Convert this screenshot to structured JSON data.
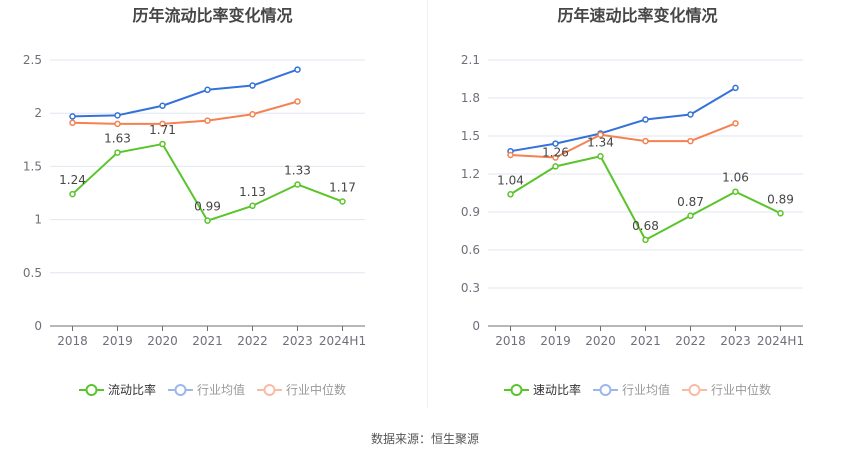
{
  "source_text": "数据来源：恒生聚源",
  "chart_data": [
    {
      "type": "line",
      "title": "历年流动比率变化情况",
      "categories": [
        "2018",
        "2019",
        "2020",
        "2021",
        "2022",
        "2023",
        "2024H1"
      ],
      "yticks": [
        "0",
        "0.5",
        "1",
        "1.5",
        "2",
        "2.5"
      ],
      "ylim": [
        0,
        2.5
      ],
      "grid": true,
      "legend_position": "bottom",
      "series": [
        {
          "name": "流动比率",
          "color": "#5ac42b",
          "values": [
            1.24,
            1.63,
            1.71,
            0.99,
            1.13,
            1.33,
            1.17
          ],
          "labels": [
            "1.24",
            "1.63",
            "1.71",
            "0.99",
            "1.13",
            "1.33",
            "1.17"
          ],
          "show_labels": true
        },
        {
          "name": "行业均值",
          "color": "#3472d9",
          "legend_color": "#9bb7ec",
          "values": [
            1.97,
            1.98,
            2.07,
            2.22,
            2.26,
            2.41,
            null
          ]
        },
        {
          "name": "行业中位数",
          "color": "#f58152",
          "legend_color": "#f9bba3",
          "values": [
            1.91,
            1.9,
            1.9,
            1.93,
            1.99,
            2.11,
            null
          ]
        }
      ]
    },
    {
      "type": "line",
      "title": "历年速动比率变化情况",
      "categories": [
        "2018",
        "2019",
        "2020",
        "2021",
        "2022",
        "2023",
        "2024H1"
      ],
      "yticks": [
        "0",
        "0.3",
        "0.6",
        "0.9",
        "1.2",
        "1.5",
        "1.8",
        "2.1"
      ],
      "ylim": [
        0,
        2.1
      ],
      "grid": true,
      "legend_position": "bottom",
      "series": [
        {
          "name": "速动比率",
          "color": "#5ac42b",
          "values": [
            1.04,
            1.26,
            1.34,
            0.68,
            0.87,
            1.06,
            0.89
          ],
          "labels": [
            "1.04",
            "1.26",
            "1.34",
            "0.68",
            "0.87",
            "1.06",
            "0.89"
          ],
          "show_labels": true
        },
        {
          "name": "行业均值",
          "color": "#3472d9",
          "legend_color": "#9bb7ec",
          "values": [
            1.38,
            1.44,
            1.52,
            1.63,
            1.67,
            1.88,
            null
          ]
        },
        {
          "name": "行业中位数",
          "color": "#f58152",
          "legend_color": "#f9bba3",
          "values": [
            1.35,
            1.33,
            1.51,
            1.46,
            1.46,
            1.6,
            null
          ]
        }
      ]
    }
  ]
}
